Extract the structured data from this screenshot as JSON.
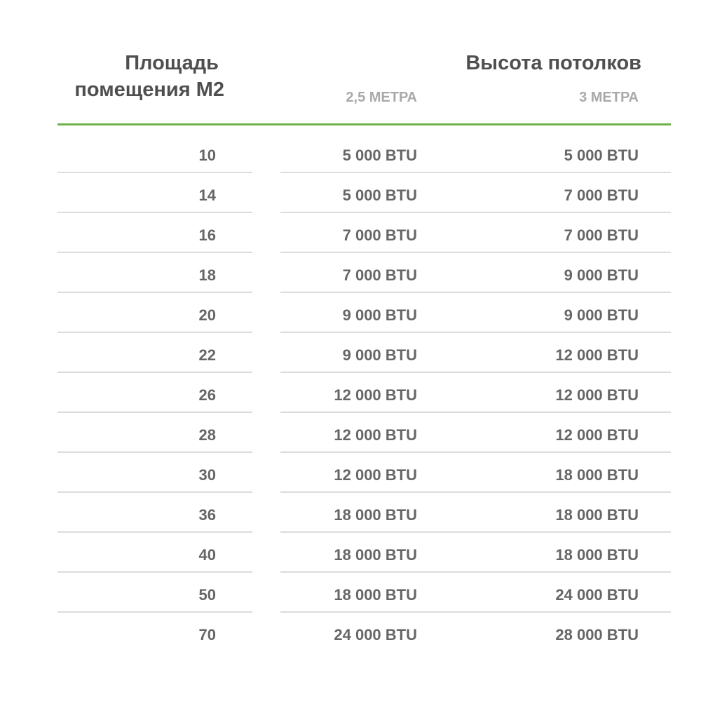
{
  "header": {
    "area_title": [
      "Площадь",
      "помещения М2"
    ],
    "height_title": "Высота потолков",
    "columns": [
      "2,5 МЕТРА",
      "3 МЕТРА"
    ]
  },
  "table": {
    "rows": [
      [
        10,
        "5 000 BTU",
        "5 000 BTU"
      ],
      [
        14,
        "5 000 BTU",
        "7 000 BTU"
      ],
      [
        16,
        "7 000 BTU",
        "7 000 BTU"
      ],
      [
        18,
        "7 000 BTU",
        "9 000 BTU"
      ],
      [
        20,
        "9 000 BTU",
        "9 000 BTU"
      ],
      [
        22,
        "9 000 BTU",
        "12 000 BTU"
      ],
      [
        26,
        "12 000 BTU",
        "12 000 BTU"
      ],
      [
        28,
        "12 000 BTU",
        "12 000 BTU"
      ],
      [
        30,
        "12 000 BTU",
        "18 000 BTU"
      ],
      [
        36,
        "18 000 BTU",
        "18 000 BTU"
      ],
      [
        40,
        "18 000 BTU",
        "18 000 BTU"
      ],
      [
        50,
        "18 000 BTU",
        "24 000 BTU"
      ],
      [
        70,
        "24 000 BTU",
        "28 000 BTU"
      ]
    ]
  }
}
